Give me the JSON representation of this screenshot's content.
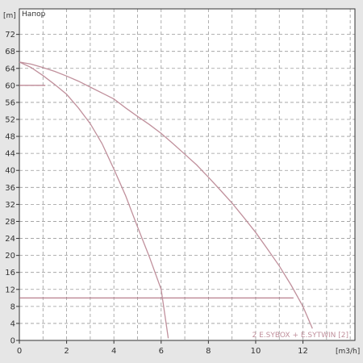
{
  "chart_data": {
    "type": "line",
    "title": "Напор",
    "ylabel_unit": "[m]",
    "xlabel_unit": "[m3/h]",
    "xlim": [
      0,
      14.2
    ],
    "ylim": [
      0,
      78
    ],
    "x_ticks": [
      0,
      2,
      4,
      6,
      8,
      10,
      12
    ],
    "y_ticks": [
      0,
      4,
      8,
      12,
      16,
      20,
      24,
      28,
      32,
      36,
      40,
      44,
      48,
      52,
      56,
      60,
      64,
      68,
      72
    ],
    "grid": true,
    "legend_text": "2 E.SYBOX + E.SYTWIN [2]",
    "legend_position": "bottom-right",
    "colors": {
      "curve": "#c0909c",
      "reference": "#b07080",
      "grid": "#9a9a9a",
      "axis": "#333333",
      "plot_bg": "#ffffff",
      "page_bg": "#e6e6e6"
    },
    "series": [
      {
        "points": [
          [
            0,
            65.5
          ],
          [
            0.5,
            65
          ],
          [
            1,
            64.2
          ],
          [
            1.5,
            63.3
          ],
          [
            2,
            62.2
          ],
          [
            2.5,
            61
          ],
          [
            3,
            59.6
          ],
          [
            3.5,
            58.2
          ],
          [
            4,
            56.8
          ],
          [
            4.5,
            54.7
          ],
          [
            5,
            52.7
          ],
          [
            5.5,
            50.8
          ],
          [
            6,
            48.7
          ],
          [
            6.5,
            46.3
          ],
          [
            7,
            43.8
          ],
          [
            7.5,
            41.3
          ],
          [
            8,
            38.4
          ],
          [
            8.5,
            35.4
          ],
          [
            9,
            32.3
          ],
          [
            9.5,
            28.9
          ],
          [
            10,
            25.4
          ],
          [
            10.5,
            21.5
          ],
          [
            11,
            17.5
          ],
          [
            11.5,
            13
          ],
          [
            12,
            8
          ],
          [
            12.4,
            2.8
          ]
        ]
      },
      {
        "points": [
          [
            0,
            65.5
          ],
          [
            0.5,
            64.2
          ],
          [
            1,
            62.3
          ],
          [
            1.5,
            60.2
          ],
          [
            2,
            57.9
          ],
          [
            2.5,
            54.7
          ],
          [
            3,
            51
          ],
          [
            3.5,
            46.3
          ],
          [
            4,
            40.3
          ],
          [
            4.5,
            34
          ],
          [
            5,
            26.7
          ],
          [
            5.5,
            19.7
          ],
          [
            6,
            12
          ],
          [
            6.3,
            0.5
          ]
        ]
      }
    ],
    "reference_lines": [
      {
        "y": 60,
        "x_to": 1.1
      },
      {
        "y": 10,
        "x_to": 11.6
      }
    ]
  }
}
